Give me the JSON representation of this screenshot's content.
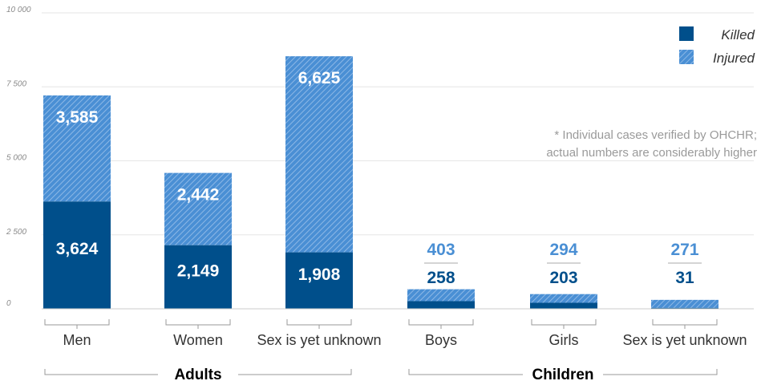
{
  "chart_data": {
    "type": "bar",
    "stacked": true,
    "categories": [
      "Men",
      "Women",
      "Sex is yet unknown",
      "Boys",
      "Girls",
      "Sex is yet unknown"
    ],
    "groups": [
      {
        "label": "Adults",
        "categories": [
          "Men",
          "Women",
          "Sex is yet unknown"
        ]
      },
      {
        "label": "Children",
        "categories": [
          "Boys",
          "Girls",
          "Sex is yet unknown"
        ]
      }
    ],
    "series": [
      {
        "name": "Killed",
        "values": [
          3624,
          2149,
          1908,
          258,
          203,
          31
        ],
        "labels": [
          "3,624",
          "2,149",
          "1,908",
          "258",
          "203",
          "31"
        ]
      },
      {
        "name": "Injured",
        "values": [
          3585,
          2442,
          6625,
          403,
          294,
          271
        ],
        "labels": [
          "3,585",
          "2,442",
          "6,625",
          "403",
          "294",
          "271"
        ]
      }
    ],
    "y_ticks": [
      "0",
      "2 500",
      "5 000",
      "7 500",
      "10 000"
    ],
    "ylim": [
      0,
      10000
    ],
    "grid": true,
    "legend_position": "top-right",
    "note": [
      "* Individual cases verified by OHCHR;",
      "actual numbers are considerably higher"
    ],
    "xlabel": "",
    "ylabel": ""
  },
  "colors": {
    "killed": "#004f8b",
    "injured": "#4a8fd4",
    "injured_hatch": "#8db8e6",
    "label_outside_injured": "#4a8fd4",
    "label_outside_killed": "#004f8b",
    "grid": "#e6e6e6",
    "axis": "#999999"
  }
}
